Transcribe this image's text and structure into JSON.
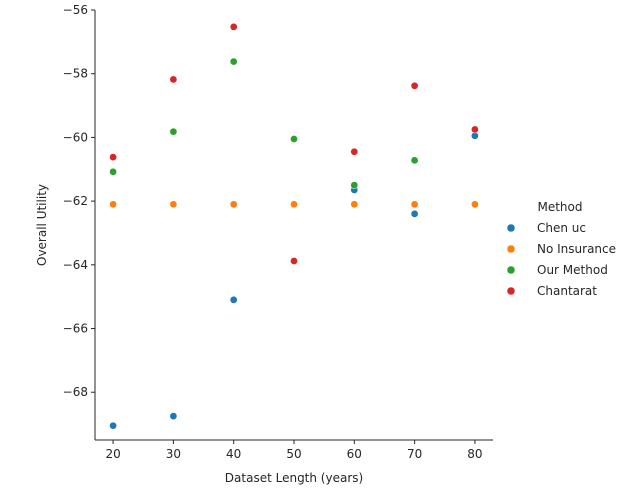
{
  "chart_data": {
    "type": "scatter",
    "xlabel": "Dataset Length (years)",
    "ylabel": "Overall Utility",
    "xlim": [
      17,
      83
    ],
    "ylim": [
      -69.5,
      -56
    ],
    "xticks": [
      20,
      30,
      40,
      50,
      60,
      70,
      80
    ],
    "yticks": [
      -68,
      -66,
      -64,
      -62,
      -60,
      -58,
      -56
    ],
    "grid": false,
    "legend": {
      "title": "Method",
      "placement": "right"
    },
    "series": [
      {
        "name": "Chen uc",
        "color": "#1f77b4",
        "points": [
          [
            20,
            -69.05
          ],
          [
            30,
            -68.75
          ],
          [
            40,
            -65.1
          ],
          [
            60,
            -61.65
          ],
          [
            70,
            -62.4
          ],
          [
            80,
            -59.95
          ]
        ]
      },
      {
        "name": "No Insurance",
        "color": "#ff7f0e",
        "points": [
          [
            20,
            -62.1
          ],
          [
            30,
            -62.1
          ],
          [
            40,
            -62.1
          ],
          [
            50,
            -62.1
          ],
          [
            60,
            -62.1
          ],
          [
            70,
            -62.1
          ],
          [
            80,
            -62.1
          ]
        ]
      },
      {
        "name": "Our Method",
        "color": "#2ca02c",
        "points": [
          [
            20,
            -61.08
          ],
          [
            30,
            -59.82
          ],
          [
            40,
            -57.62
          ],
          [
            50,
            -60.05
          ],
          [
            60,
            -61.5
          ],
          [
            70,
            -60.72
          ]
        ]
      },
      {
        "name": "Chantarat",
        "color": "#d62728",
        "points": [
          [
            20,
            -60.62
          ],
          [
            30,
            -58.18
          ],
          [
            40,
            -56.53
          ],
          [
            50,
            -63.88
          ],
          [
            60,
            -60.45
          ],
          [
            70,
            -58.38
          ],
          [
            80,
            -59.75
          ]
        ]
      }
    ]
  }
}
